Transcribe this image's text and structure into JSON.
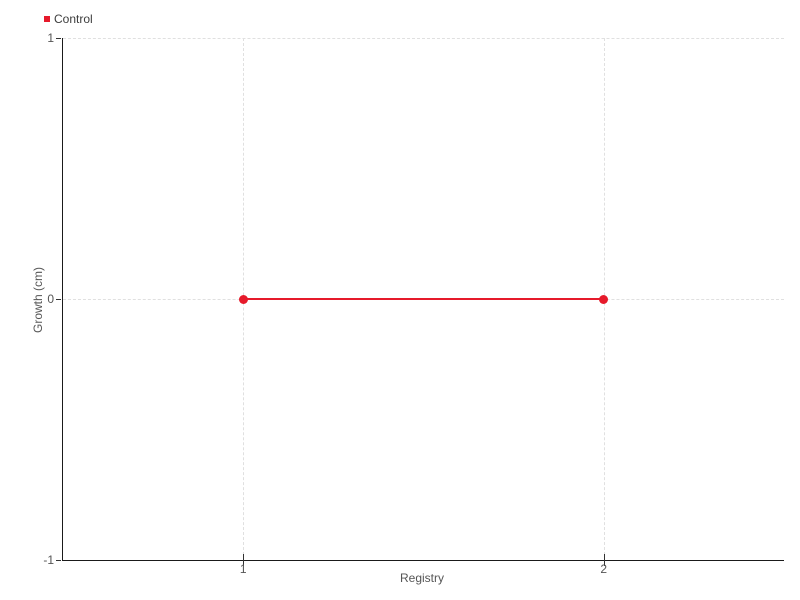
{
  "chart_data": {
    "type": "line",
    "title": "",
    "xlabel": "Registry",
    "ylabel": "Growth (cm)",
    "xlim": [
      0.5,
      2.5
    ],
    "ylim": [
      -1,
      1
    ],
    "grid": "dashed",
    "legend_position": "top-left",
    "x_ticks": [
      {
        "value": 1,
        "label": "1"
      },
      {
        "value": 2,
        "label": "2"
      }
    ],
    "y_ticks": [
      {
        "value": 1,
        "label": "1"
      },
      {
        "value": 0,
        "label": "0"
      },
      {
        "value": -1,
        "label": "-1"
      }
    ],
    "series": [
      {
        "name": "Control",
        "color": "#e61a2b",
        "marker": "circle",
        "x": [
          1,
          2
        ],
        "y": [
          0,
          0
        ]
      }
    ]
  },
  "legend": {
    "items": [
      {
        "label": "Control",
        "color": "#e61a2b"
      }
    ]
  },
  "colors": {
    "background": "#ffffff",
    "axis": "#1a1a1a",
    "grid": "#e0e0e0",
    "tick_text": "#555555",
    "legend_text": "#3d3d3d",
    "series_red": "#e61a2b"
  }
}
